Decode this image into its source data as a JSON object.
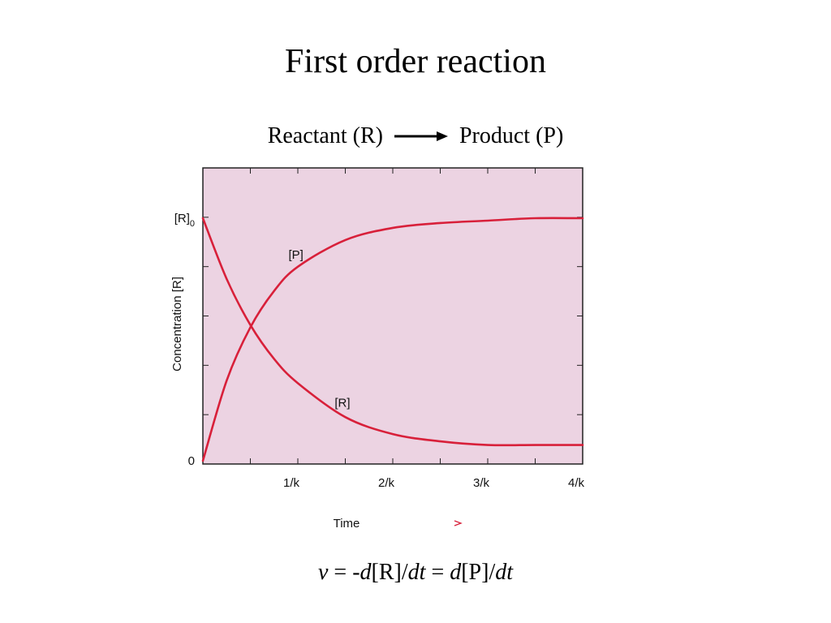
{
  "slide": {
    "title": "First order reaction",
    "reaction": {
      "reactant": "Reactant (R)",
      "product": "Product (P)"
    },
    "equation": {
      "v": "v",
      "eq1": " = -",
      "d1": "d",
      "r": "[R]/",
      "dt1": "dt",
      "eq2": " = ",
      "d2": "d",
      "p": "[P]/",
      "dt2": "dt"
    }
  },
  "chart_data": {
    "type": "line",
    "ylabel": "Concentration [R]",
    "xlabel": "Time",
    "x_ticks": [
      {
        "value": 1,
        "label": "1/k"
      },
      {
        "value": 2,
        "label": "2/k"
      },
      {
        "value": 3,
        "label": "3/k"
      },
      {
        "value": 4,
        "label": "4/k"
      }
    ],
    "y_ticks": [
      {
        "value": 0,
        "label": "0"
      },
      {
        "value": 1,
        "label": "[R]0",
        "main": "[R]",
        "sub": "0"
      }
    ],
    "xlim": [
      0,
      4
    ],
    "ylim": [
      0,
      1
    ],
    "series": [
      {
        "name": "[P]",
        "label": "[P]",
        "color": "#d8203a",
        "x": [
          0,
          0.25,
          0.5,
          0.75,
          1,
          1.5,
          2,
          2.5,
          3,
          3.5,
          4
        ],
        "values": [
          0,
          0.33,
          0.55,
          0.7,
          0.8,
          0.91,
          0.96,
          0.98,
          0.99,
          1.0,
          1.0
        ]
      },
      {
        "name": "[R]",
        "label": "[R]",
        "color": "#d8203a",
        "x": [
          0,
          0.25,
          0.5,
          0.75,
          1,
          1.5,
          2,
          2.5,
          3,
          3.5,
          4
        ],
        "values": [
          1.0,
          0.75,
          0.56,
          0.42,
          0.32,
          0.18,
          0.11,
          0.08,
          0.065,
          0.065,
          0.065
        ]
      }
    ],
    "colors": {
      "plot_background": "#ecd3e2",
      "curve": "#d8203a",
      "axis": "#222222",
      "time_arrow_start": "#3aa6a0",
      "time_arrow_end": "#d8203a"
    }
  }
}
